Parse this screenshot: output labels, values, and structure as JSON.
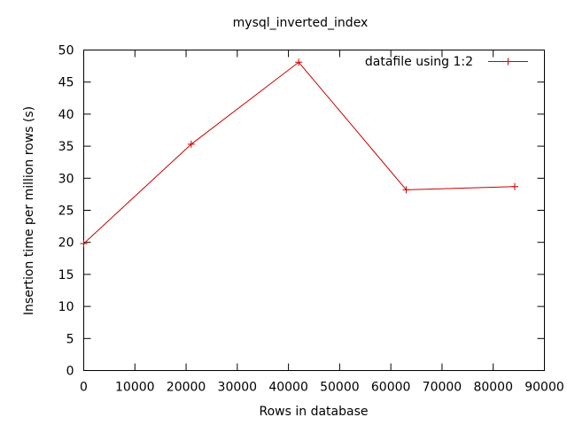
{
  "chart_data": {
    "type": "line",
    "title": "mysql_inverted_index",
    "xlabel": "Rows in database",
    "ylabel": "Insertion time per million rows (s)",
    "xlim": [
      0,
      90000
    ],
    "ylim": [
      0,
      50
    ],
    "xticks": [
      0,
      10000,
      20000,
      30000,
      40000,
      50000,
      60000,
      70000,
      80000,
      90000
    ],
    "yticks": [
      0,
      5,
      10,
      15,
      20,
      25,
      30,
      35,
      40,
      45,
      50
    ],
    "grid": false,
    "legend_position": "top-right",
    "series": [
      {
        "name": "datafile using 1:2",
        "color": "#cc0000",
        "marker": "plus",
        "x": [
          0,
          21000,
          42000,
          63000,
          84200
        ],
        "y": [
          19.8,
          35.3,
          48.1,
          28.2,
          28.7
        ]
      }
    ]
  }
}
